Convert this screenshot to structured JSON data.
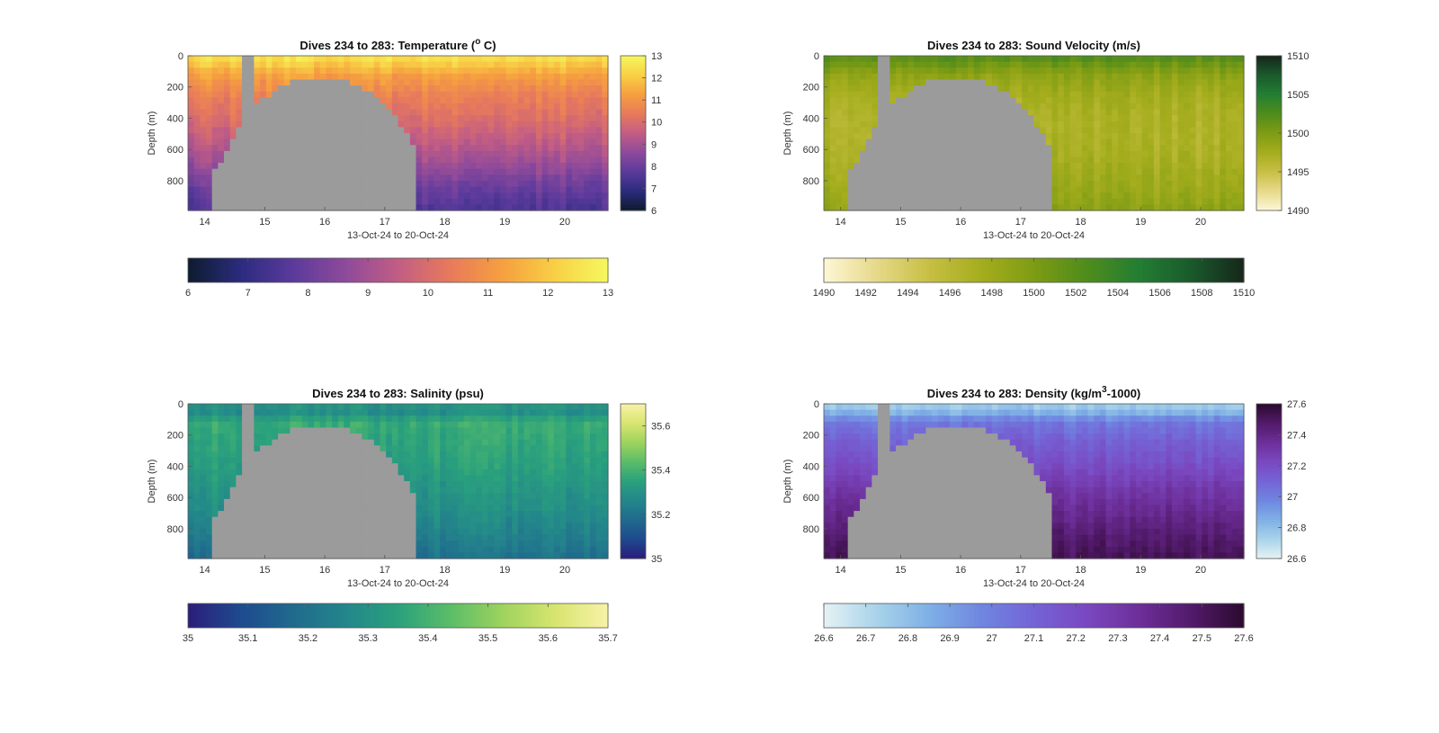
{
  "chart_data": [
    {
      "type": "heatmap",
      "title_main": "Dives 234 to 283: Temperature (",
      "title_sup": "o",
      "title_end": " C)",
      "xlabel": "13-Oct-24 to 20-Oct-24",
      "ylabel": "Depth (m)",
      "xticks": [
        "14",
        "15",
        "16",
        "17",
        "18",
        "19",
        "20"
      ],
      "xtick_values": [
        14,
        15,
        16,
        17,
        18,
        19,
        20
      ],
      "xlim": [
        13.72,
        20.72
      ],
      "yticks": [
        "0",
        "200",
        "400",
        "600",
        "800"
      ],
      "ytick_values": [
        0,
        200,
        400,
        600,
        800
      ],
      "ylim": [
        0,
        990
      ],
      "color_range": [
        6,
        13
      ],
      "colorbar_ticks": [
        "6",
        "7",
        "8",
        "9",
        "10",
        "11",
        "12",
        "13"
      ],
      "colorbar_tick_values": [
        6,
        7,
        8,
        9,
        10,
        11,
        12,
        13
      ],
      "bottom_colorbar_ticks": [
        "6",
        "7",
        "8",
        "9",
        "10",
        "11",
        "12",
        "13"
      ],
      "bottom_colorbar_tick_values": [
        6,
        7,
        8,
        9,
        10,
        11,
        12,
        13
      ],
      "colormap": [
        "#0d1b2e",
        "#2b2c7e",
        "#5b3a9c",
        "#8e4a9b",
        "#c25d84",
        "#e87a5b",
        "#f6a03f",
        "#f8d045",
        "#f5f85e"
      ],
      "profile": {
        "depths": [
          0,
          50,
          120,
          250,
          400,
          550,
          700,
          850,
          990
        ],
        "values": [
          12.6,
          12.1,
          11.3,
          10.6,
          10.1,
          9.5,
          8.8,
          8.0,
          7.5
        ]
      },
      "missing_color": "#9b9b9b"
    },
    {
      "type": "heatmap",
      "title_main": "Dives 234 to 283: Sound Velocity (m/s)",
      "title_sup": "",
      "title_end": "",
      "xlabel": "13-Oct-24 to 20-Oct-24",
      "ylabel": "Depth (m)",
      "xticks": [
        "14",
        "15",
        "16",
        "17",
        "18",
        "19",
        "20"
      ],
      "xtick_values": [
        14,
        15,
        16,
        17,
        18,
        19,
        20
      ],
      "xlim": [
        13.72,
        20.72
      ],
      "yticks": [
        "0",
        "200",
        "400",
        "600",
        "800"
      ],
      "ytick_values": [
        0,
        200,
        400,
        600,
        800
      ],
      "ylim": [
        0,
        990
      ],
      "color_range": [
        1490,
        1510
      ],
      "colorbar_ticks": [
        "1490",
        "1495",
        "1500",
        "1505",
        "1510"
      ],
      "colorbar_tick_values": [
        1490,
        1495,
        1500,
        1505,
        1510
      ],
      "bottom_colorbar_ticks": [
        "1490",
        "1492",
        "1494",
        "1496",
        "1498",
        "1500",
        "1502",
        "1504",
        "1506",
        "1508",
        "1510"
      ],
      "bottom_colorbar_tick_values": [
        1490,
        1492,
        1494,
        1496,
        1498,
        1500,
        1502,
        1504,
        1506,
        1508,
        1510
      ],
      "colormap": [
        "#fdf7d6",
        "#e6d98a",
        "#c7bf44",
        "#a4ad1d",
        "#7e9c14",
        "#4f8c1c",
        "#237e33",
        "#1a5a2c",
        "#16261a"
      ],
      "profile": {
        "depths": [
          0,
          50,
          120,
          250,
          400,
          550,
          700,
          850,
          990
        ],
        "values": [
          1502.5,
          1501.0,
          1499.0,
          1497.5,
          1496.8,
          1496.8,
          1497.3,
          1498.0,
          1499.0
        ]
      },
      "missing_color": "#9b9b9b"
    },
    {
      "type": "heatmap",
      "title_main": "Dives 234 to 283: Salinity (psu)",
      "title_sup": "",
      "title_end": "",
      "xlabel": "13-Oct-24 to 20-Oct-24",
      "ylabel": "Depth (m)",
      "xticks": [
        "14",
        "15",
        "16",
        "17",
        "18",
        "19",
        "20"
      ],
      "xtick_values": [
        14,
        15,
        16,
        17,
        18,
        19,
        20
      ],
      "xlim": [
        13.72,
        20.72
      ],
      "yticks": [
        "0",
        "200",
        "400",
        "600",
        "800"
      ],
      "ytick_values": [
        0,
        200,
        400,
        600,
        800
      ],
      "ylim": [
        0,
        990
      ],
      "color_range": [
        35,
        35.7
      ],
      "colorbar_ticks": [
        "35",
        "35.2",
        "35.4",
        "35.6"
      ],
      "colorbar_tick_values": [
        35,
        35.2,
        35.4,
        35.6
      ],
      "bottom_colorbar_ticks": [
        "35",
        "35.1",
        "35.2",
        "35.3",
        "35.4",
        "35.5",
        "35.6",
        "35.7"
      ],
      "bottom_colorbar_tick_values": [
        35,
        35.1,
        35.2,
        35.3,
        35.4,
        35.5,
        35.6,
        35.7
      ],
      "colormap": [
        "#2a1d7a",
        "#1f4a8f",
        "#206a8d",
        "#23868b",
        "#2aa17d",
        "#5bbd68",
        "#9ed35e",
        "#d8e56f",
        "#f7f2a8"
      ],
      "profile": {
        "depths": [
          0,
          50,
          120,
          250,
          400,
          550,
          700,
          850,
          990
        ],
        "values": [
          35.32,
          35.28,
          35.38,
          35.36,
          35.34,
          35.31,
          35.28,
          35.24,
          35.19
        ]
      },
      "missing_color": "#9b9b9b"
    },
    {
      "type": "heatmap",
      "title_main": "Dives 234 to 283: Density (kg/m",
      "title_sup": "3",
      "title_end": "-1000)",
      "xlabel": "13-Oct-24 to 20-Oct-24",
      "ylabel": "Depth (m)",
      "xticks": [
        "14",
        "15",
        "16",
        "17",
        "18",
        "19",
        "20"
      ],
      "xtick_values": [
        14,
        15,
        16,
        17,
        18,
        19,
        20
      ],
      "xlim": [
        13.72,
        20.72
      ],
      "yticks": [
        "0",
        "200",
        "400",
        "600",
        "800"
      ],
      "ytick_values": [
        0,
        200,
        400,
        600,
        800
      ],
      "ylim": [
        0,
        990
      ],
      "color_range": [
        26.6,
        27.6
      ],
      "colorbar_ticks": [
        "26.6",
        "26.8",
        "27",
        "27.2",
        "27.4",
        "27.6"
      ],
      "colorbar_tick_values": [
        26.6,
        26.8,
        27.0,
        27.2,
        27.4,
        27.6
      ],
      "bottom_colorbar_ticks": [
        "26.6",
        "26.7",
        "26.8",
        "26.9",
        "27",
        "27.1",
        "27.2",
        "27.3",
        "27.4",
        "27.5",
        "27.6"
      ],
      "bottom_colorbar_tick_values": [
        26.6,
        26.7,
        26.8,
        26.9,
        27.0,
        27.1,
        27.2,
        27.3,
        27.4,
        27.5,
        27.6
      ],
      "colormap": [
        "#e6f2f4",
        "#a9d3ea",
        "#7fb0e6",
        "#6f86e0",
        "#7464d6",
        "#7a48c0",
        "#6d2f9a",
        "#521a6a",
        "#2b0a2e"
      ],
      "profile": {
        "depths": [
          0,
          50,
          120,
          250,
          400,
          550,
          700,
          850,
          990
        ],
        "values": [
          26.72,
          26.82,
          27.02,
          27.12,
          27.2,
          27.3,
          27.38,
          27.46,
          27.52
        ]
      },
      "missing_color": "#9b9b9b"
    }
  ]
}
